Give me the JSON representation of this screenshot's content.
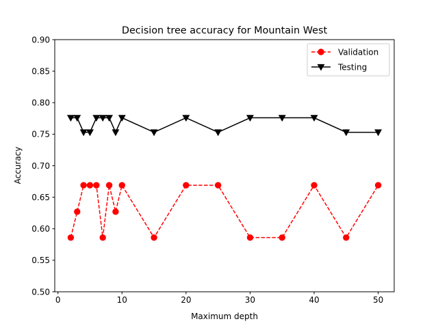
{
  "chart_data": {
    "type": "line",
    "title": "Decision tree accuracy for Mountain West",
    "xlabel": "Maximum depth",
    "ylabel": "Accuracy",
    "xlim": [
      -0.5,
      52.5
    ],
    "ylim": [
      0.5,
      0.9
    ],
    "xticks": [
      0,
      10,
      20,
      30,
      40,
      50
    ],
    "xtick_labels": [
      "0",
      "10",
      "20",
      "30",
      "40",
      "50"
    ],
    "yticks": [
      0.5,
      0.55,
      0.6,
      0.65,
      0.7,
      0.75,
      0.8,
      0.85,
      0.9
    ],
    "ytick_labels": [
      "0.50",
      "0.55",
      "0.60",
      "0.65",
      "0.70",
      "0.75",
      "0.80",
      "0.85",
      "0.90"
    ],
    "grid": false,
    "legend_position": "top-right",
    "x": [
      2,
      3,
      4,
      5,
      6,
      7,
      8,
      9,
      10,
      15,
      20,
      25,
      30,
      35,
      40,
      45,
      50
    ],
    "series": [
      {
        "name": "Validation",
        "color": "#ff0000",
        "marker": "circle",
        "line_style": "dashed",
        "values": [
          0.586,
          0.627,
          0.669,
          0.669,
          0.669,
          0.586,
          0.669,
          0.627,
          0.669,
          0.586,
          0.669,
          0.669,
          0.586,
          0.586,
          0.669,
          0.586,
          0.669
        ]
      },
      {
        "name": "Testing",
        "color": "#000000",
        "marker": "triangle-down",
        "line_style": "solid",
        "values": [
          0.776,
          0.776,
          0.753,
          0.753,
          0.776,
          0.776,
          0.776,
          0.753,
          0.776,
          0.753,
          0.776,
          0.753,
          0.776,
          0.776,
          0.776,
          0.753,
          0.753
        ]
      }
    ]
  }
}
